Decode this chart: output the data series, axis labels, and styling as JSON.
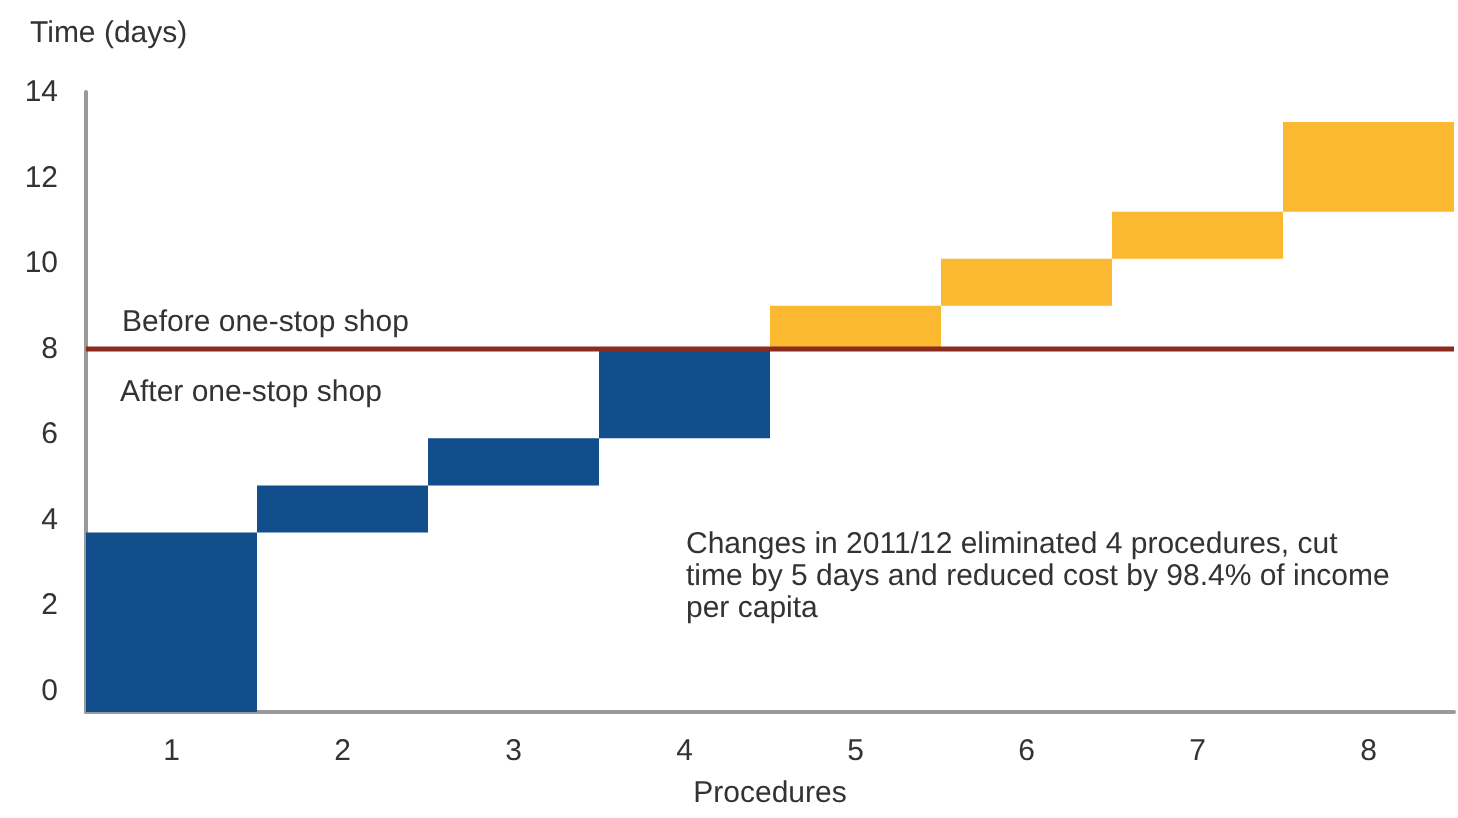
{
  "chart_data": {
    "type": "bar",
    "xlabel": "Procedures",
    "ylabel": "Time (days)",
    "categories": [
      "1",
      "2",
      "3",
      "4",
      "5",
      "6",
      "7",
      "8"
    ],
    "base": [
      -0.5,
      3.7,
      4.8,
      5.9,
      8,
      9,
      10.1,
      11.2
    ],
    "values": [
      4.2,
      1.1,
      1.1,
      2.1,
      1,
      1.1,
      1.1,
      2.1
    ],
    "colors": [
      "#124d8c",
      "#124d8c",
      "#124d8c",
      "#124d8c",
      "#fbb931",
      "#fbb931",
      "#fbb931",
      "#fbb931"
    ],
    "ylim": [
      -0.5,
      14
    ],
    "yticks": [
      0,
      2,
      4,
      6,
      8,
      10,
      12,
      14
    ],
    "grid": false,
    "ref_lines": [
      {
        "axis": "y",
        "value": 8,
        "label": "Before one-stop shop",
        "color": "#8b2a1e"
      }
    ],
    "annotations": [
      "After one-stop shop",
      "Changes in 2011/12 eliminated 4 procedures, cut\ntime by 5 days and reduced cost by 98.4% of income\nper capita"
    ]
  }
}
